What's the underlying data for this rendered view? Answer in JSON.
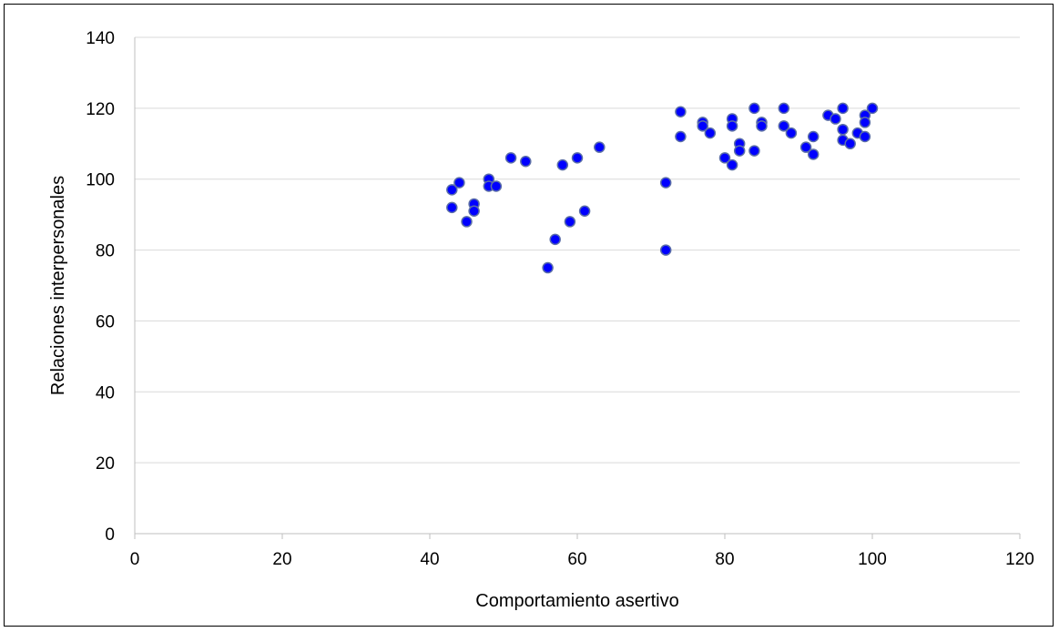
{
  "chart_data": {
    "type": "scatter",
    "title": "",
    "xlabel": "Comportamiento asertivo",
    "ylabel": "Relaciones interpersonales",
    "xlim": [
      0,
      120
    ],
    "ylim": [
      0,
      140
    ],
    "x_ticks": [
      0,
      20,
      40,
      60,
      80,
      100,
      120
    ],
    "y_ticks": [
      0,
      20,
      40,
      60,
      80,
      100,
      120,
      140
    ],
    "grid": "horizontal",
    "legend": "none",
    "marker_color": "#0000FF",
    "marker_edge_color": "#5b6ea8",
    "gridline_color": "#d9d9d9",
    "axis_color": "#bfbfbf",
    "series": [
      {
        "points": [
          [
            43,
            97
          ],
          [
            43,
            92
          ],
          [
            44,
            99
          ],
          [
            45,
            88
          ],
          [
            46,
            93
          ],
          [
            46,
            91
          ],
          [
            48,
            100
          ],
          [
            48,
            98
          ],
          [
            49,
            98
          ],
          [
            51,
            106
          ],
          [
            53,
            105
          ],
          [
            56,
            75
          ],
          [
            57,
            83
          ],
          [
            58,
            104
          ],
          [
            59,
            88
          ],
          [
            60,
            106
          ],
          [
            61,
            91
          ],
          [
            63,
            109
          ],
          [
            72,
            99
          ],
          [
            72,
            80
          ],
          [
            74,
            119
          ],
          [
            74,
            112
          ],
          [
            77,
            116
          ],
          [
            77,
            115
          ],
          [
            78,
            113
          ],
          [
            80,
            106
          ],
          [
            81,
            117
          ],
          [
            81,
            115
          ],
          [
            81,
            104
          ],
          [
            82,
            110
          ],
          [
            82,
            108
          ],
          [
            84,
            120
          ],
          [
            84,
            108
          ],
          [
            85,
            116
          ],
          [
            85,
            115
          ],
          [
            88,
            120
          ],
          [
            88,
            115
          ],
          [
            89,
            113
          ],
          [
            91,
            109
          ],
          [
            92,
            112
          ],
          [
            92,
            107
          ],
          [
            94,
            118
          ],
          [
            95,
            117
          ],
          [
            96,
            120
          ],
          [
            96,
            114
          ],
          [
            96,
            111
          ],
          [
            97,
            110
          ],
          [
            98,
            113
          ],
          [
            99,
            118
          ],
          [
            99,
            116
          ],
          [
            99,
            112
          ],
          [
            100,
            120
          ]
        ]
      }
    ]
  }
}
